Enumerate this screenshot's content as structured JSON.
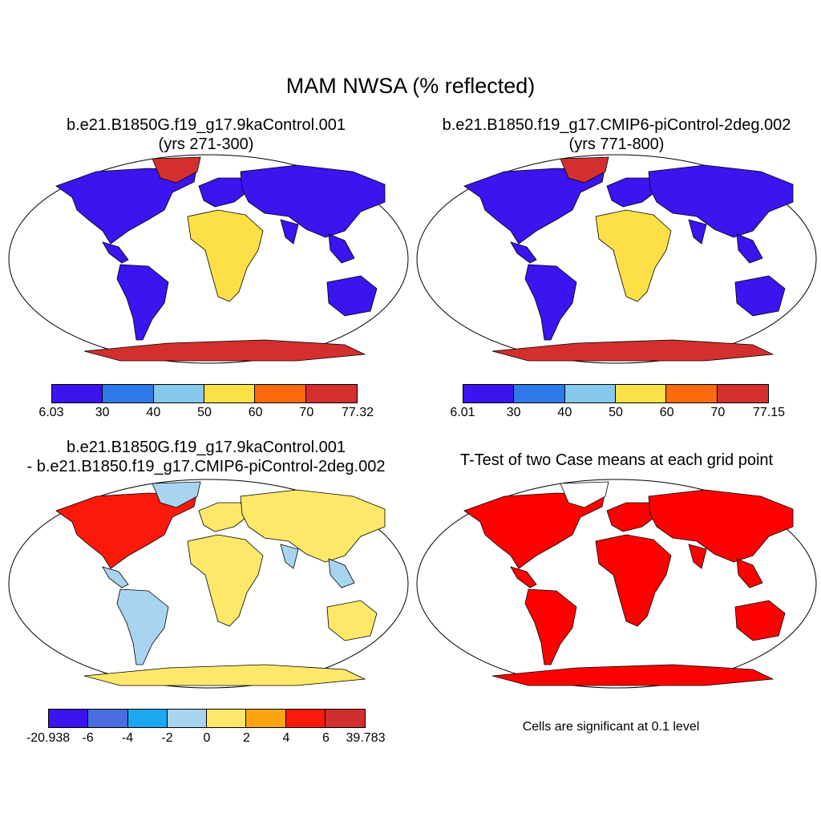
{
  "title": "MAM NWSA (% reflected)",
  "panels": [
    {
      "id": "case1",
      "title_line1": "b.e21.B1850G.f19_g17.9kaControl.001",
      "title_line2": "(yrs 271-300)",
      "colorbar": {
        "colors": [
          "#3b14f0",
          "#2e7ae8",
          "#87c8ed",
          "#fde047",
          "#fb6a0c",
          "#d32f2f"
        ],
        "labels": [
          "6.03",
          "30",
          "40",
          "50",
          "60",
          "70",
          "77.32"
        ]
      }
    },
    {
      "id": "case2",
      "title_line1": "b.e21.B1850.f19_g17.CMIP6-piControl-2deg.002",
      "title_line2": "(yrs 771-800)",
      "colorbar": {
        "colors": [
          "#3b14f0",
          "#2e7ae8",
          "#87c8ed",
          "#fde047",
          "#fb6a0c",
          "#d32f2f"
        ],
        "labels": [
          "6.01",
          "30",
          "40",
          "50",
          "60",
          "70",
          "77.15"
        ]
      }
    },
    {
      "id": "diff",
      "title_line1": "b.e21.B1850G.f19_g17.9kaControl.001",
      "title_line2": "- b.e21.B1850.f19_g17.CMIP6-piControl-2deg.002",
      "colorbar": {
        "colors": [
          "#3b14f0",
          "#4a6ee0",
          "#1ba8f0",
          "#a8d4ef",
          "#fde86a",
          "#fca510",
          "#fb1a0a",
          "#cf2f2f"
        ],
        "labels": [
          "-20.938",
          "-6",
          "-4",
          "-2",
          "0",
          "2",
          "4",
          "6",
          "39.783"
        ]
      }
    },
    {
      "id": "ttest",
      "title_line1": "T-Test of two Case means at each grid point",
      "title_line2": "",
      "note": "Cells are significant at 0.1 level",
      "sig_color": "#ff0000"
    }
  ]
}
